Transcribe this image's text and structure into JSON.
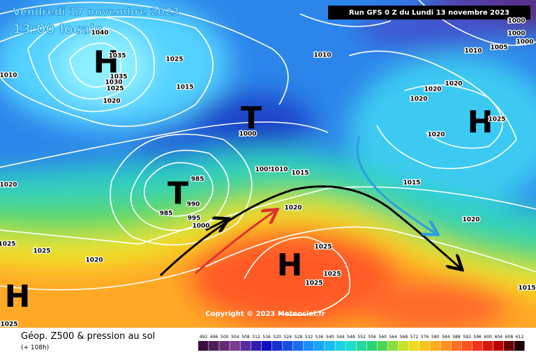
{
  "header": {
    "valid_date": "Vendredi 17 novembre 2023",
    "local_time": "13:00 locale",
    "run": "Run GFS 0 Z du Lundi 13 novembre 2023"
  },
  "pressure_centers": [
    "H",
    "T",
    "T",
    "H",
    "H",
    "H"
  ],
  "isobar_labels": [
    "1040",
    "1035",
    "1035",
    "1030",
    "1025",
    "1020",
    "1025",
    "1015",
    "1010",
    "1010",
    "1010",
    "1005",
    "1000",
    "1000",
    "1000",
    "1000",
    "1020",
    "1020",
    "1020",
    "1020",
    "1025",
    "1005",
    "1010",
    "1015",
    "1015",
    "1020",
    "1020",
    "985",
    "990",
    "985",
    "995",
    "1000",
    "1020",
    "1025",
    "1025",
    "1020",
    "1025",
    "1025",
    "1025",
    "1015",
    "1025"
  ],
  "copyright": "Copyright © 2023 Meteociel.fr",
  "legend": {
    "title": "Géop. Z500 & pression au sol",
    "subtitle": "(+ 108h)",
    "scale": [
      492,
      496,
      500,
      504,
      508,
      512,
      516,
      520,
      524,
      528,
      532,
      536,
      540,
      544,
      548,
      552,
      556,
      560,
      564,
      568,
      572,
      576,
      580,
      584,
      588,
      592,
      596,
      600,
      604,
      608,
      612
    ]
  }
}
